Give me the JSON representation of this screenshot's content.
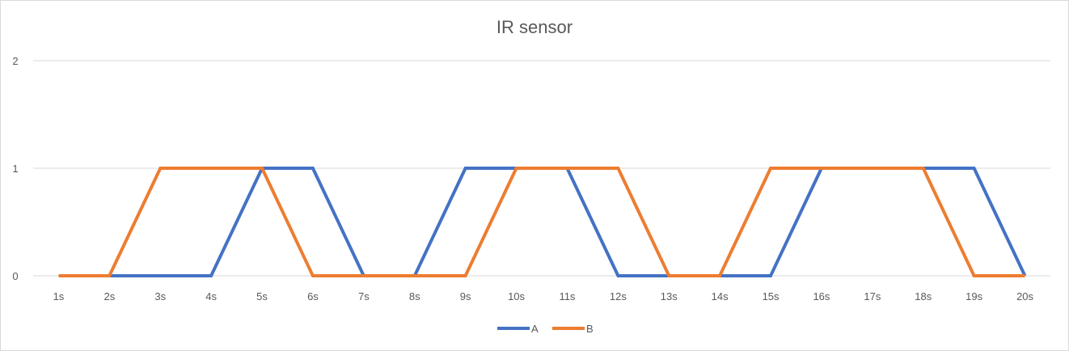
{
  "chart_data": {
    "type": "line",
    "title": "IR sensor",
    "xlabel": "",
    "ylabel": "",
    "categories": [
      "1s",
      "2s",
      "3s",
      "4s",
      "5s",
      "6s",
      "7s",
      "8s",
      "9s",
      "10s",
      "11s",
      "12s",
      "13s",
      "14s",
      "15s",
      "16s",
      "17s",
      "18s",
      "19s",
      "20s"
    ],
    "ylim": [
      0,
      2
    ],
    "yticks": [
      0,
      1,
      2
    ],
    "grid": true,
    "legend": "bottom",
    "series": [
      {
        "name": "A",
        "color": "#4472C4",
        "values": [
          0,
          0,
          0,
          0,
          1,
          1,
          0,
          0,
          1,
          1,
          1,
          0,
          0,
          0,
          0,
          1,
          1,
          1,
          1,
          0
        ]
      },
      {
        "name": "B",
        "color": "#ED7D31",
        "values": [
          0,
          0,
          1,
          1,
          1,
          0,
          0,
          0,
          0,
          1,
          1,
          1,
          0,
          0,
          1,
          1,
          1,
          1,
          0,
          0
        ]
      }
    ]
  }
}
